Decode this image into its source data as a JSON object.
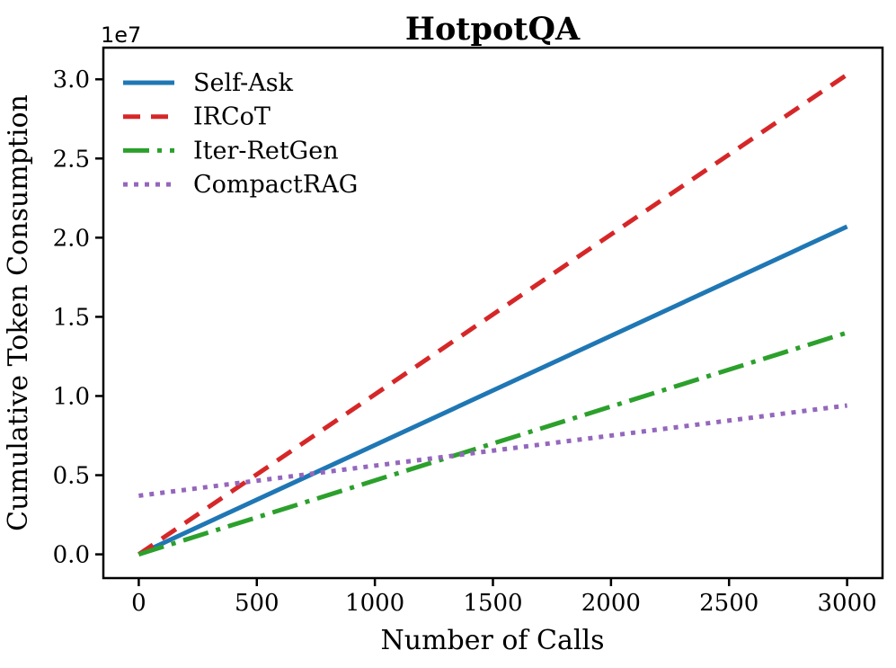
{
  "figure": {
    "background_color": "#ffffff",
    "text_color": "#000000",
    "spine_color": "#000000"
  },
  "chart_data": {
    "type": "line",
    "title": "HotpotQA",
    "xlabel": "Number of Calls",
    "ylabel": "Cumulative Token Consumption",
    "offset_text": "1e7",
    "grid": false,
    "legend_position": "upper left",
    "xlim": [
      -150,
      3150
    ],
    "ylim": [
      -1500000,
      32000000
    ],
    "xticks": [
      0,
      500,
      1000,
      1500,
      2000,
      2500,
      3000
    ],
    "xtick_labels": [
      "0",
      "500",
      "1000",
      "1500",
      "2000",
      "2500",
      "3000"
    ],
    "yticks": [
      0,
      5000000,
      10000000,
      15000000,
      20000000,
      25000000,
      30000000
    ],
    "ytick_labels": [
      "0.0",
      "0.5",
      "1.0",
      "1.5",
      "2.0",
      "2.5",
      "3.0"
    ],
    "series": [
      {
        "name": "Self-Ask",
        "color": "#1f77b4",
        "style": "solid",
        "x": [
          0,
          3000
        ],
        "y": [
          0,
          20700000
        ]
      },
      {
        "name": "IRCoT",
        "color": "#d62728",
        "style": "dashed",
        "x": [
          0,
          3000
        ],
        "y": [
          0,
          30300000
        ]
      },
      {
        "name": "Iter-RetGen",
        "color": "#2ca02c",
        "style": "dashdot",
        "x": [
          0,
          3000
        ],
        "y": [
          0,
          14000000
        ]
      },
      {
        "name": "CompactRAG",
        "color": "#9467bd",
        "style": "dotted",
        "x": [
          0,
          3000
        ],
        "y": [
          3700000,
          9400000
        ]
      }
    ]
  }
}
